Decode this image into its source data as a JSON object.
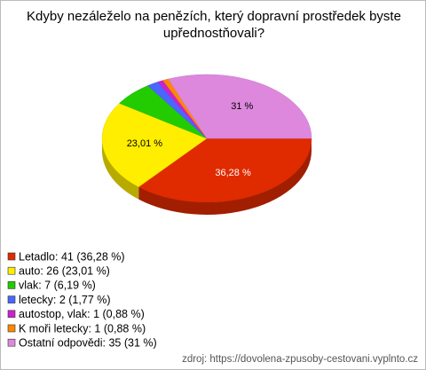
{
  "chart_data": {
    "type": "pie3d",
    "title": "Kdyby nezáleželo na penězích, který dopravní prostředek byste upřednostňovali?",
    "categories": [
      "Letadlo",
      "auto",
      "vlak",
      "letecky",
      "autostop, vlak",
      "K moři letecky",
      "Ostatní odpovědi"
    ],
    "values": [
      36.28,
      23.01,
      6.19,
      1.77,
      0.88,
      0.88,
      31
    ],
    "value_labels": [
      "36,28 %",
      "23,01 %",
      null,
      null,
      null,
      null,
      "31 %"
    ],
    "legend_labels": [
      "Letadlo: 41 (36,28 %)",
      "auto: 26 (23,01 %)",
      "vlak: 7 (6,19 %)",
      "letecky: 2 (1,77 %)",
      "autostop, vlak: 1 (0,88 %)",
      "K moři letecky: 1 (0,88 %)",
      "Ostatní odpovědi: 35 (31 %)"
    ],
    "colors": [
      "#e02a00",
      "#ffee00",
      "#22cc00",
      "#4a66ff",
      "#cc22cc",
      "#ff8800",
      "#dd88dd"
    ],
    "source": "zdroj: https://dovolena-zpusoby-cestovani.vyplnto.cz"
  }
}
